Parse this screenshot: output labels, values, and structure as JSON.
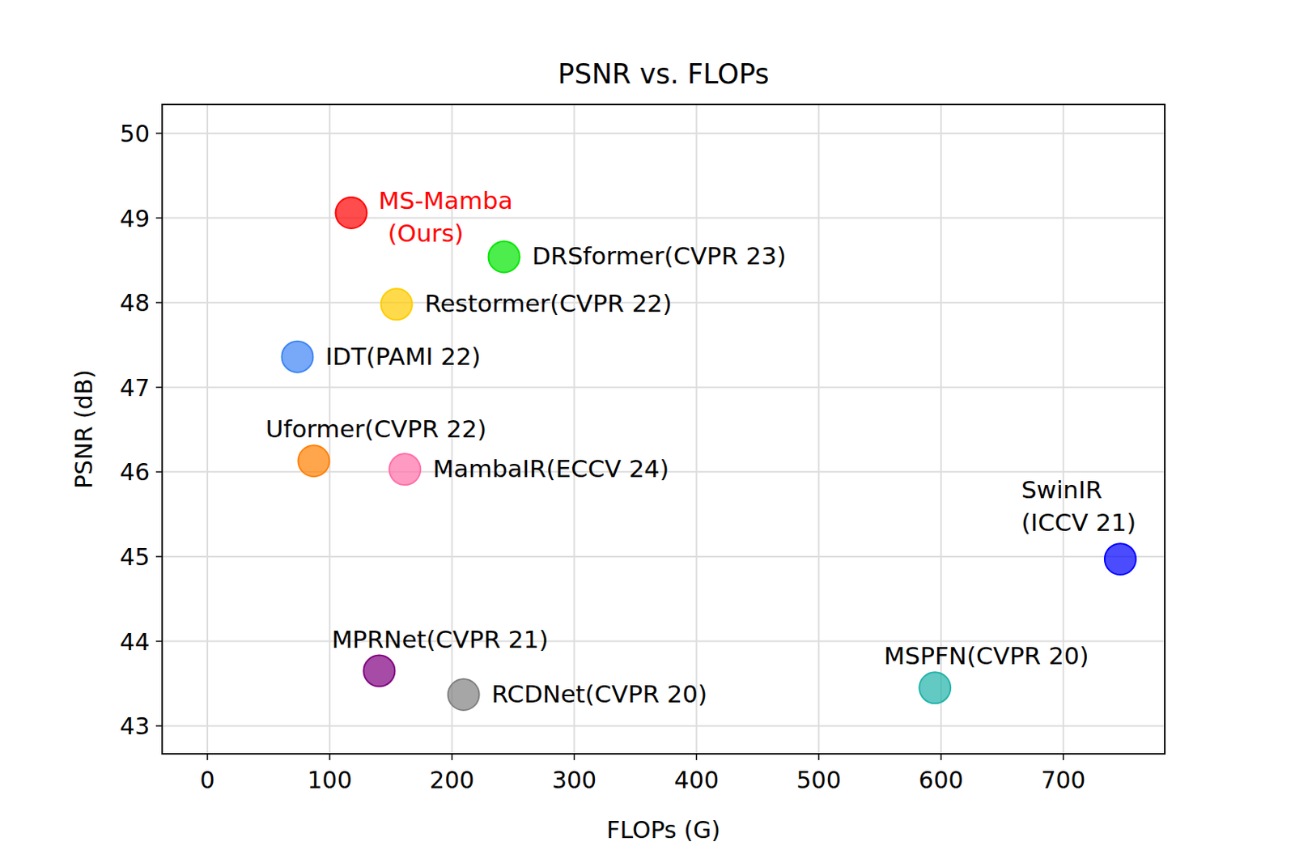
{
  "chart_data": {
    "type": "scatter",
    "title": "PSNR vs. FLOPs",
    "x_label": "FLOPs (G)",
    "y_label": "PSNR (dB)",
    "xlim": [
      -37,
      783
    ],
    "xticks": [
      0,
      100,
      200,
      300,
      400,
      500,
      600,
      700
    ],
    "ylim": [
      42.67,
      50.34
    ],
    "yticks": [
      43,
      44,
      45,
      46,
      47,
      48,
      49,
      50
    ],
    "grid": true,
    "marker": "circle",
    "series": [
      {
        "name": "MS-Mamba\n(Ours)",
        "color": "#ff0000",
        "x": [
          117.6
        ],
        "values": [
          49.06
        ]
      },
      {
        "name": "DRSformer(CVPR 23)",
        "color": "#00e600",
        "x": [
          242.6
        ],
        "values": [
          48.54
        ]
      },
      {
        "name": "Restormer(CVPR 22)",
        "color": "#ffcc00",
        "x": [
          154.7
        ],
        "values": [
          47.98
        ]
      },
      {
        "name": "IDT(PAMI 22)",
        "color": "#3d85f5",
        "x": [
          73.6
        ],
        "values": [
          47.36
        ]
      },
      {
        "name": "Uformer(CVPR 22)",
        "color": "#ff8000",
        "x": [
          87
        ],
        "values": [
          46.13
        ]
      },
      {
        "name": "MambaIR(ECCV 24)",
        "color": "#ff6fa8",
        "x": [
          161.5
        ],
        "values": [
          46.03
        ]
      },
      {
        "name": "SwinIR\n(ICCV 21)",
        "color": "#0000ff",
        "x": [
          746.6
        ],
        "values": [
          44.97
        ]
      },
      {
        "name": "MPRNet(CVPR 21)",
        "color": "#800080",
        "x": [
          140.5
        ],
        "values": [
          43.65
        ]
      },
      {
        "name": "RCDNet(CVPR 20)",
        "color": "#808080",
        "x": [
          209.5
        ],
        "values": [
          43.37
        ]
      },
      {
        "name": "MSPFN(CVPR 20)",
        "color": "#20b2aa",
        "x": [
          595
        ],
        "values": [
          43.45
        ]
      }
    ]
  }
}
